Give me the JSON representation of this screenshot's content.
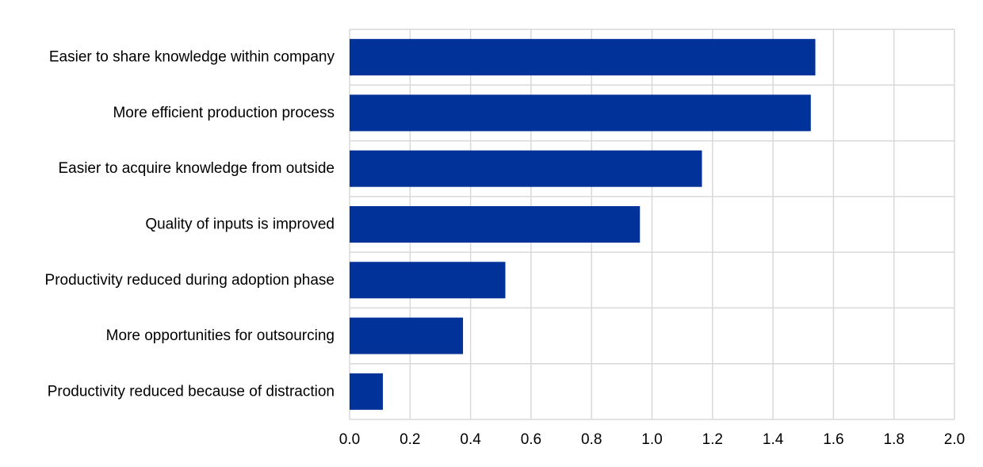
{
  "chart_data": {
    "type": "bar",
    "orientation": "horizontal",
    "title": "",
    "xlabel": "",
    "ylabel": "",
    "categories": [
      "Easier to share knowledge within company",
      "More efficient production process",
      "Easier to acquire knowledge from outside ",
      "Quality of inputs is improved",
      "Productivity reduced during adoption phase",
      "More opportunities for outsourcing ",
      "Productivity reduced because of distraction"
    ],
    "values": [
      1.54,
      1.525,
      1.165,
      0.96,
      0.515,
      0.375,
      0.11
    ],
    "xlim": [
      0,
      2.0
    ],
    "xticks": [
      "0.0",
      "0.2",
      "0.4",
      "0.6",
      "0.8",
      "1.0",
      "1.2",
      "1.4",
      "1.6",
      "1.8",
      "2.0"
    ],
    "grid": true,
    "legend": "none",
    "bar_color": "#003299",
    "grid_color": "#d9d9d9"
  }
}
